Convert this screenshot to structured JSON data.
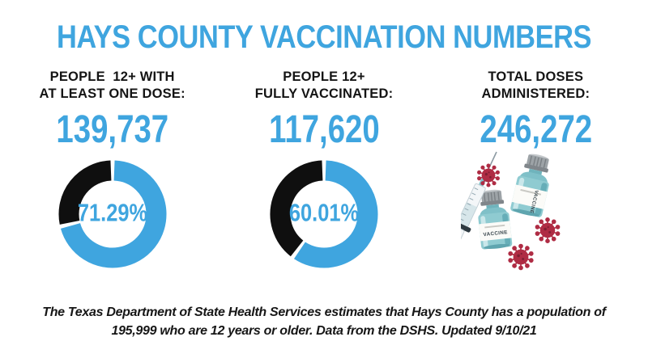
{
  "title": "HAYS COUNTY VACCINATION NUMBERS",
  "theme": {
    "accent_blue": "#3FA5DF",
    "ink_black": "#121212",
    "donut_dark": "#0F0F0F",
    "virus_red": "#AF2C44",
    "vial_teal": "#8FCBD1",
    "background": "#FFFFFF"
  },
  "columns": [
    {
      "label_line1": "PEOPLE  12+ WITH",
      "label_line2": "AT LEAST ONE DOSE:",
      "value": "139,737"
    },
    {
      "label_line1": "PEOPLE 12+",
      "label_line2": "FULLY VACCINATED:",
      "value": "117,620"
    },
    {
      "label_line1": "TOTAL DOSES",
      "label_line2": "ADMINISTERED:",
      "value": "246,272"
    }
  ],
  "chart_data": [
    {
      "type": "pie",
      "variant": "donut",
      "label": "71.29%",
      "title": "Share of people 12+ with at least one dose",
      "slices": [
        {
          "name": "at-least-one-dose",
          "value": 71.29,
          "color": "#3FA5DF"
        },
        {
          "name": "remainder",
          "value": 28.71,
          "color": "#0F0F0F"
        }
      ],
      "start_angle_deg": 0,
      "direction": "clockwise",
      "legend": "none"
    },
    {
      "type": "pie",
      "variant": "donut",
      "label": "60.01%",
      "title": "Share of people 12+ fully vaccinated",
      "slices": [
        {
          "name": "fully-vaccinated",
          "value": 60.01,
          "color": "#3FA5DF"
        },
        {
          "name": "remainder",
          "value": 39.99,
          "color": "#0F0F0F"
        }
      ],
      "start_angle_deg": 0,
      "direction": "clockwise",
      "legend": "none"
    }
  ],
  "illustration": {
    "name": "vaccine-vials-syringe-and-virus",
    "vial_label_text": "VACCINE"
  },
  "footer": {
    "line1": "The Texas Department of State Health Services estimates that Hays County has a population of",
    "line2": "195,999 who are 12 years or older. Data from the DSHS. Updated 9/10/21"
  }
}
